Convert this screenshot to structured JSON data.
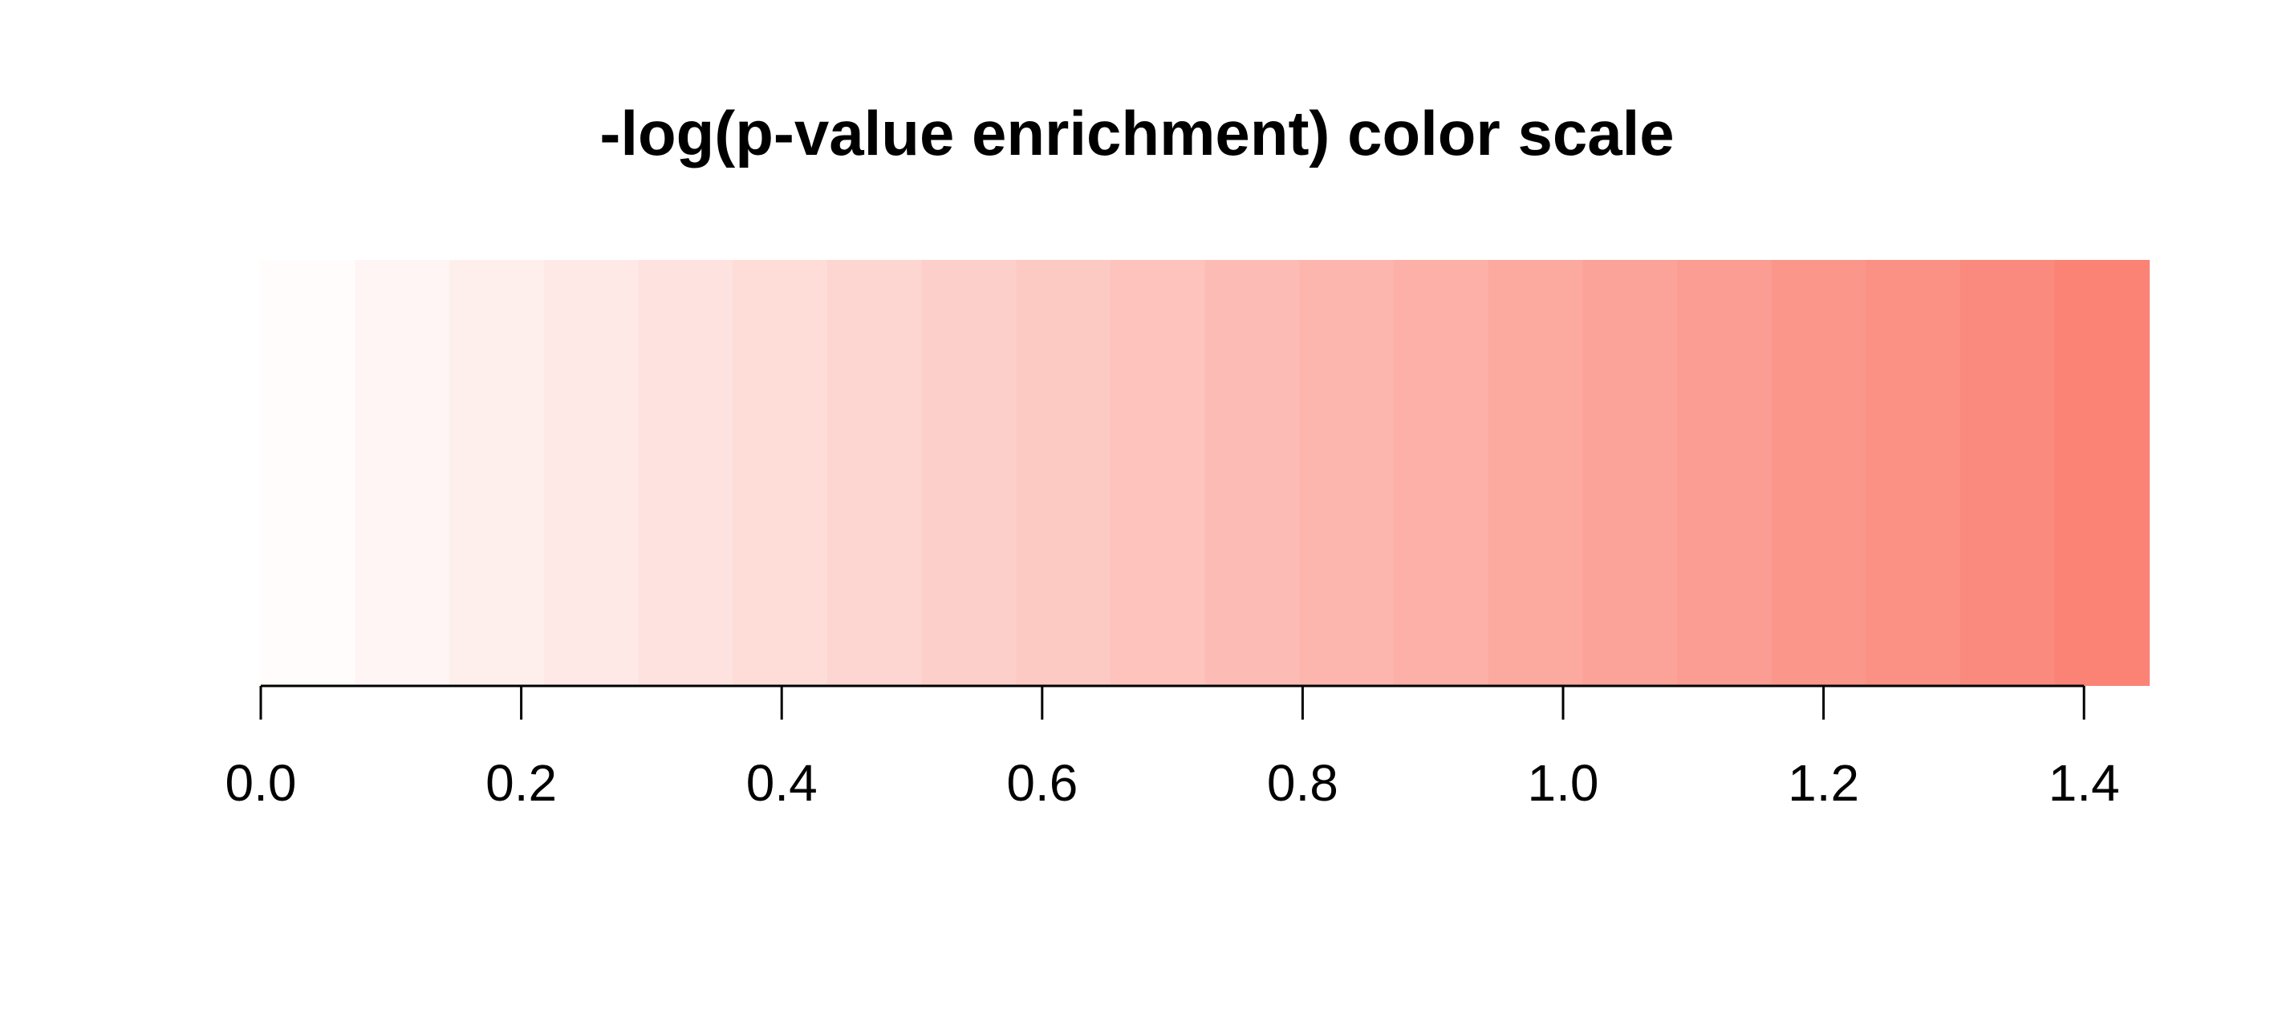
{
  "chart_data": {
    "type": "heatmap",
    "title": "-log(p-value enrichment) color scale",
    "xlabel": "",
    "ylabel": "",
    "xlim": [
      0.0,
      1.45
    ],
    "color_min": "#ffffff",
    "color_max": "#fa8072",
    "color_steps": 20,
    "ticks": [
      0.0,
      0.2,
      0.4,
      0.6,
      0.8,
      1.0,
      1.2,
      1.4
    ],
    "tick_labels": [
      "0.0",
      "0.2",
      "0.4",
      "0.6",
      "0.8",
      "1.0",
      "1.2",
      "1.4"
    ],
    "grid": false,
    "legend": "none"
  }
}
